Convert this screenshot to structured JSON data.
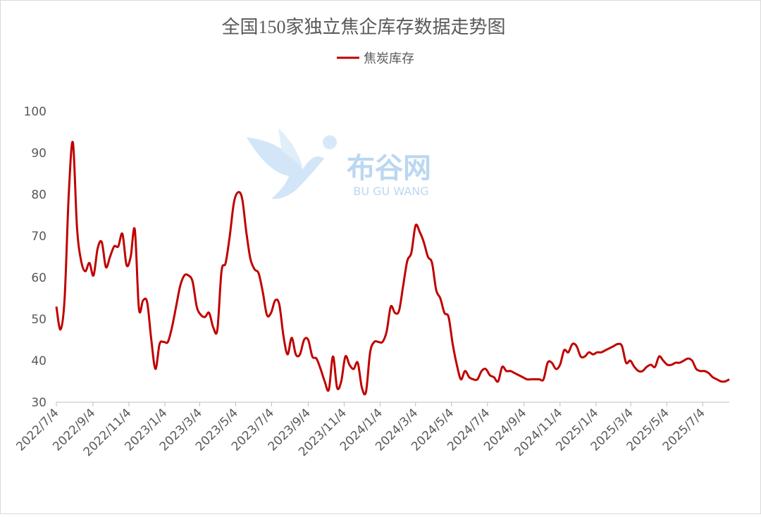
{
  "chart_data": {
    "type": "line",
    "title": "全国150家独立焦企库存数据走势图",
    "watermark": {
      "name": "布谷网",
      "latin": "BU GU WANG"
    },
    "x": [
      "2022/7/4",
      "2022/7/11",
      "2022/7/18",
      "2022/7/25",
      "2022/8/1",
      "2022/8/8",
      "2022/8/15",
      "2022/8/22",
      "2022/8/29",
      "2022/9/5",
      "2022/9/12",
      "2022/9/19",
      "2022/9/26",
      "2022/10/3",
      "2022/10/10",
      "2022/10/17",
      "2022/10/24",
      "2022/10/31",
      "2022/11/7",
      "2022/11/14",
      "2022/11/21",
      "2022/11/28",
      "2022/12/5",
      "2022/12/12",
      "2022/12/19",
      "2022/12/26",
      "2023/1/2",
      "2023/1/9",
      "2023/1/16",
      "2023/1/23",
      "2023/1/30",
      "2023/2/6",
      "2023/2/13",
      "2023/2/20",
      "2023/2/27",
      "2023/3/6",
      "2023/3/13",
      "2023/3/20",
      "2023/3/27",
      "2023/4/3",
      "2023/4/10",
      "2023/4/17",
      "2023/4/24",
      "2023/5/1",
      "2023/5/8",
      "2023/5/15",
      "2023/5/22",
      "2023/5/29",
      "2023/6/5",
      "2023/6/12",
      "2023/6/19",
      "2023/6/26",
      "2023/7/3",
      "2023/7/10",
      "2023/7/17",
      "2023/7/24",
      "2023/7/31",
      "2023/8/7",
      "2023/8/14",
      "2023/8/21",
      "2023/8/28",
      "2023/9/4",
      "2023/9/11",
      "2023/9/18",
      "2023/9/25",
      "2023/10/2",
      "2023/10/9",
      "2023/10/16",
      "2023/10/23",
      "2023/10/30",
      "2023/11/6",
      "2023/11/13",
      "2023/11/20",
      "2023/11/27",
      "2023/12/4",
      "2023/12/11",
      "2023/12/18",
      "2023/12/25",
      "2024/1/1",
      "2024/1/8",
      "2024/1/15",
      "2024/1/22",
      "2024/1/29",
      "2024/2/5",
      "2024/2/12",
      "2024/2/19",
      "2024/2/26",
      "2024/3/4",
      "2024/3/11",
      "2024/3/18",
      "2024/3/25",
      "2024/4/1",
      "2024/4/8",
      "2024/4/15",
      "2024/4/22",
      "2024/4/29",
      "2024/5/6",
      "2024/5/13",
      "2024/5/20",
      "2024/5/27",
      "2024/6/3",
      "2024/6/10",
      "2024/6/17",
      "2024/6/24",
      "2024/7/1",
      "2024/7/8",
      "2024/7/15",
      "2024/7/22",
      "2024/7/29",
      "2024/8/5",
      "2024/8/12",
      "2024/8/19",
      "2024/8/26",
      "2024/9/2",
      "2024/9/9",
      "2024/9/16",
      "2024/9/23",
      "2024/9/30",
      "2024/10/7",
      "2024/10/14",
      "2024/10/21",
      "2024/10/28",
      "2024/11/4",
      "2024/11/11",
      "2024/11/18",
      "2024/11/25",
      "2024/12/2",
      "2024/12/9",
      "2024/12/16",
      "2024/12/23",
      "2024/12/30",
      "2025/1/6",
      "2025/1/13",
      "2025/1/20",
      "2025/1/27",
      "2025/2/3",
      "2025/2/10",
      "2025/2/17",
      "2025/2/24",
      "2025/3/3",
      "2025/3/10",
      "2025/3/17",
      "2025/3/24",
      "2025/3/31",
      "2025/4/7",
      "2025/4/14",
      "2025/4/21",
      "2025/4/28",
      "2025/5/5",
      "2025/5/12",
      "2025/5/19",
      "2025/5/26",
      "2025/6/2",
      "2025/6/9",
      "2025/6/16",
      "2025/6/23",
      "2025/6/30",
      "2025/7/7",
      "2025/7/14",
      "2025/7/21",
      "2025/7/28",
      "2025/8/4",
      "2025/8/11",
      "2025/8/18"
    ],
    "series": [
      {
        "name": "焦炭库存",
        "color": "#c00000",
        "values": [
          53,
          47.5,
          55,
          80,
          92.5,
          72,
          64,
          61.5,
          63.5,
          60.5,
          67,
          68.5,
          62.5,
          65,
          67.5,
          67.5,
          70.5,
          63,
          65,
          71.5,
          52.5,
          54.5,
          54,
          45,
          38,
          44,
          44.5,
          44.5,
          48,
          53,
          58,
          60.5,
          60.5,
          59,
          53,
          51,
          50.5,
          51.5,
          48,
          47.5,
          61.5,
          63.5,
          70,
          78,
          80.5,
          79,
          71,
          64.5,
          62,
          61,
          56.5,
          51,
          51.5,
          54.5,
          53.5,
          46,
          41.5,
          45.5,
          41.5,
          41.5,
          45,
          45,
          41,
          40.5,
          38,
          35,
          33,
          41,
          33.5,
          35,
          41,
          39,
          38,
          39.5,
          33.5,
          32.5,
          42,
          44.5,
          44.5,
          44.5,
          47,
          53,
          51.5,
          52,
          58,
          64,
          66,
          72.5,
          71,
          68.5,
          65,
          63.5,
          57,
          55,
          51.5,
          50.5,
          44,
          39,
          35.5,
          37.5,
          36,
          35.5,
          35.5,
          37.5,
          38,
          36.5,
          36,
          35,
          38.5,
          37.5,
          37.5,
          37,
          36.5,
          36,
          35.5,
          35.5,
          35.5,
          35.5,
          35.5,
          39.5,
          39.5,
          38,
          39,
          42.5,
          42,
          44,
          43.5,
          41,
          41,
          42,
          41.5,
          42,
          42,
          42.5,
          43,
          43.5,
          44,
          43.5,
          39.5,
          40,
          38.5,
          37.5,
          37.5,
          38.5,
          39,
          38.5,
          41,
          40,
          39,
          39,
          39.5,
          39.5,
          40,
          40.5,
          40,
          38,
          37.5,
          37.5,
          37,
          36,
          35.5,
          35,
          35,
          35.5
        ]
      }
    ],
    "xlim": [
      "2022/7/4",
      "2025/8/18"
    ],
    "xticks": [
      "2022/7/4",
      "2022/9/4",
      "2022/11/4",
      "2023/1/4",
      "2023/3/4",
      "2023/5/4",
      "2023/7/4",
      "2023/9/4",
      "2023/11/4",
      "2024/1/4",
      "2024/3/4",
      "2024/5/4",
      "2024/7/4",
      "2024/9/4",
      "2024/11/4",
      "2025/1/4",
      "2025/3/4",
      "2025/5/4",
      "2025/7/4"
    ],
    "ylim": [
      30,
      100
    ],
    "yticks": [
      30,
      40,
      50,
      60,
      70,
      80,
      90,
      100
    ],
    "grid": false,
    "legend": "top"
  }
}
